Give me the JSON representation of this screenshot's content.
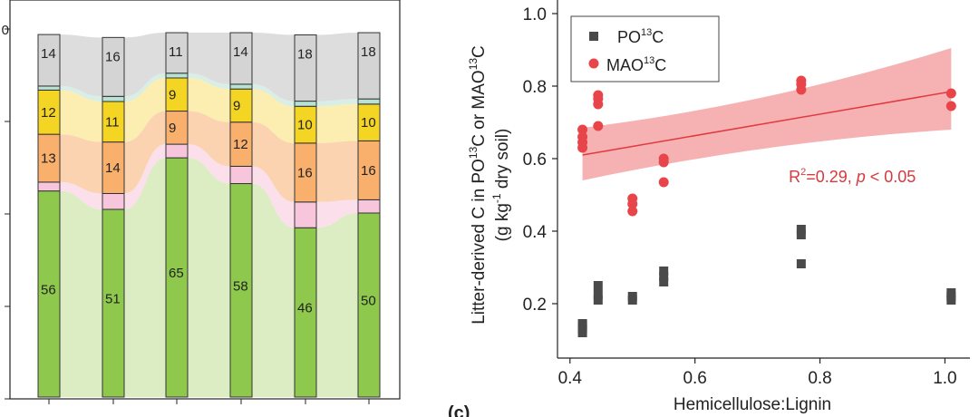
{
  "chart_data": [
    {
      "type": "bar",
      "stacked": true,
      "panel": "left",
      "categories": [
        "",
        "",
        "",
        "",
        "",
        ""
      ],
      "series": [
        {
          "name": "green",
          "color": "#8ec94d",
          "flow_color": "#dcecc3",
          "values": [
            56,
            51,
            65,
            58,
            46,
            50
          ]
        },
        {
          "name": "pink",
          "color": "#f7c6dc",
          "flow_color": "#fbe0ec",
          "values": [
            2.4,
            4.3,
            3.7,
            4.7,
            7,
            3.6
          ]
        },
        {
          "name": "orange",
          "color": "#f8b06c",
          "flow_color": "#fbd3b0",
          "values": [
            13,
            14,
            9,
            12,
            16,
            16
          ]
        },
        {
          "name": "yellow",
          "color": "#f5d523",
          "flow_color": "#fbeeb0",
          "values": [
            12,
            11,
            9,
            9,
            10,
            10
          ]
        },
        {
          "name": "teal",
          "color": "#b9e2d6",
          "flow_color": "#d8eee6",
          "values": [
            1.1,
            1.4,
            1.3,
            1.3,
            1.4,
            1.4
          ]
        },
        {
          "name": "grey",
          "color": "#d4d4d4",
          "flow_color": "#dddddd",
          "values": [
            14,
            16,
            11,
            14,
            18,
            18
          ]
        }
      ],
      "labels": [
        [
          "56",
          "",
          "13",
          "12",
          "",
          "14"
        ],
        [
          "51",
          "",
          "14",
          "11",
          "",
          "16"
        ],
        [
          "65",
          "",
          "9",
          "9",
          "",
          "11"
        ],
        [
          "58",
          "",
          "12",
          "9",
          "",
          "14"
        ],
        [
          "46",
          "",
          "16",
          "10",
          "",
          "18"
        ],
        [
          "50",
          "",
          "16",
          "10",
          "",
          "18"
        ]
      ],
      "ylim": [
        0,
        100
      ],
      "partial_axis_label": "0"
    },
    {
      "type": "scatter",
      "panel": "right",
      "panel_label": "(c)",
      "xlabel": "Hemicellulose:Lignin",
      "ylabel_line1_parts": [
        "Litter-derived C in PO",
        "13",
        "C or MAO",
        "13",
        "C"
      ],
      "ylabel_line2_parts": [
        "(g kg",
        "-1",
        " dry soil)"
      ],
      "xlim": [
        0.38,
        1.04
      ],
      "ylim": [
        0.05,
        1.0
      ],
      "xticks": [
        0.4,
        0.6,
        0.8,
        1.0
      ],
      "xtick_labels": [
        "0.4",
        "0.6",
        "0.8",
        "1.0"
      ],
      "yticks": [
        0.2,
        0.4,
        0.6,
        0.8,
        1.0
      ],
      "ytick_labels": [
        "0.2",
        "0.4",
        "0.6",
        "0.8",
        "1.0"
      ],
      "legend": {
        "position": "top-left",
        "entries": [
          {
            "name": "PO13C",
            "parts": [
              "PO",
              "13",
              "C"
            ],
            "marker": "square",
            "color": "#4a4a4a"
          },
          {
            "name": "MAO13C",
            "parts": [
              "MAO",
              "13",
              "C"
            ],
            "marker": "circle",
            "color": "#e8454a"
          }
        ]
      },
      "series": [
        {
          "name": "PO13C",
          "marker": "square",
          "color": "#4a4a4a",
          "points": [
            [
              0.42,
              0.12
            ],
            [
              0.42,
              0.13
            ],
            [
              0.42,
              0.14
            ],
            [
              0.42,
              0.145
            ],
            [
              0.445,
              0.21
            ],
            [
              0.445,
              0.225
            ],
            [
              0.445,
              0.25
            ],
            [
              0.5,
              0.21
            ],
            [
              0.5,
              0.22
            ],
            [
              0.55,
              0.26
            ],
            [
              0.55,
              0.275
            ],
            [
              0.55,
              0.29
            ],
            [
              0.77,
              0.31
            ],
            [
              0.77,
              0.39
            ],
            [
              0.77,
              0.405
            ],
            [
              1.01,
              0.21
            ],
            [
              1.01,
              0.22
            ],
            [
              1.01,
              0.23
            ]
          ]
        },
        {
          "name": "MAO13C",
          "marker": "circle",
          "color": "#e8454a",
          "points": [
            [
              0.42,
              0.63
            ],
            [
              0.42,
              0.645
            ],
            [
              0.42,
              0.66
            ],
            [
              0.42,
              0.68
            ],
            [
              0.445,
              0.69
            ],
            [
              0.445,
              0.75
            ],
            [
              0.445,
              0.765
            ],
            [
              0.445,
              0.775
            ],
            [
              0.5,
              0.455
            ],
            [
              0.5,
              0.475
            ],
            [
              0.5,
              0.49
            ],
            [
              0.55,
              0.535
            ],
            [
              0.55,
              0.59
            ],
            [
              0.55,
              0.6
            ],
            [
              0.77,
              0.79
            ],
            [
              0.77,
              0.805
            ],
            [
              0.77,
              0.815
            ],
            [
              1.01,
              0.745
            ],
            [
              1.01,
              0.78
            ]
          ]
        }
      ],
      "fit": {
        "color": "#e03a3f",
        "band_color": "#f4a3a6",
        "x": [
          0.42,
          1.01
        ],
        "y": [
          0.61,
          0.785
        ],
        "band_lower": [
          0.54,
          0.68
        ],
        "band_upper": [
          0.685,
          0.905
        ]
      },
      "annotation_parts": [
        "R",
        "2",
        "=0.29, ",
        "p",
        " < 0.05"
      ],
      "annotation_anchor": [
        0.75,
        0.55
      ]
    }
  ]
}
